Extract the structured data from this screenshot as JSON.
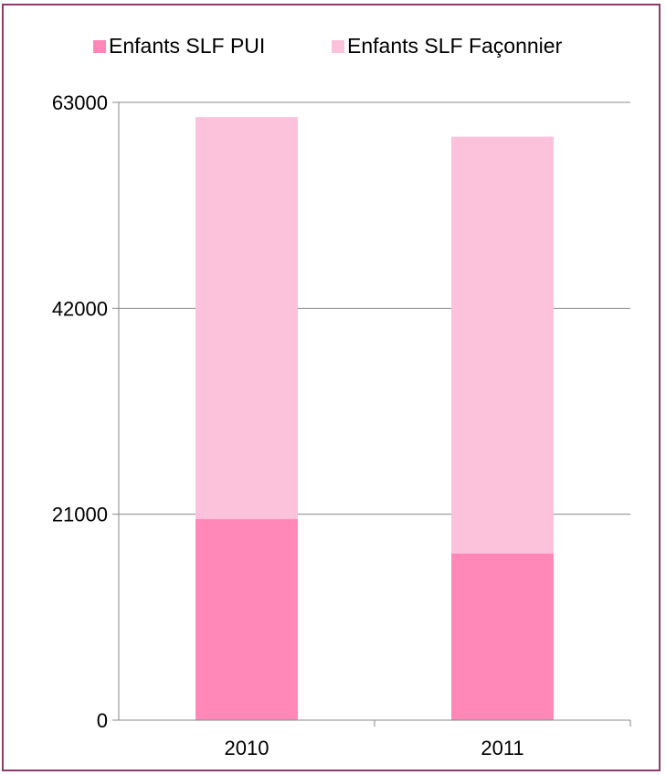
{
  "chart_data": {
    "type": "bar",
    "stacked": true,
    "categories": [
      "2010",
      "2011"
    ],
    "series": [
      {
        "name": "Enfants SLF PUI",
        "color": "#ff88b8",
        "values": [
          20500,
          17000
        ]
      },
      {
        "name": "Enfants SLF Façonnier",
        "color": "#fcc2dc",
        "values": [
          41000,
          42500
        ]
      }
    ],
    "ylim": [
      0,
      63000
    ],
    "yticks": [
      "0",
      "21000",
      "42000",
      "63000"
    ],
    "xlabel": "",
    "ylabel": "",
    "grid": true,
    "legend_position": "top",
    "frame_color": "#8e3a6b"
  }
}
